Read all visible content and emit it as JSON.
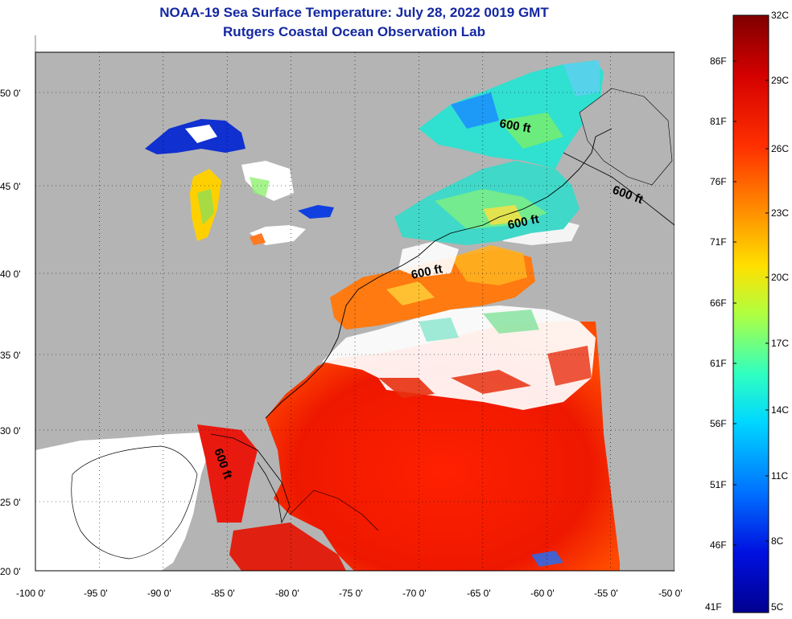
{
  "header": {
    "title": "NOAA-19 Sea Surface Temperature:  July 28, 2022 0019 GMT",
    "subtitle": "Rutgers Coastal Ocean Observation Lab"
  },
  "map": {
    "lon_ticks": [
      "-100 0'",
      "-95 0'",
      "-90 0'",
      "-85 0'",
      "-80 0'",
      "-75 0'",
      "-70 0'",
      "-65 0'",
      "-60 0'",
      "-55 0'",
      "-50 0'"
    ],
    "lat_ticks": [
      "50 0'",
      "45 0'",
      "40 0'",
      "35 0'",
      "30 0'",
      "25 0'",
      "20 0'"
    ],
    "contour_labels": [
      "600 ft",
      "600 ft",
      "600 ft",
      "600 ft",
      "600 ft"
    ],
    "land_color": "#b4b4b4",
    "cloud_color": "#ffffff"
  },
  "colorbar": {
    "celsius": [
      "32C",
      "29C",
      "26C",
      "23C",
      "20C",
      "17C",
      "14C",
      "11C",
      "8C",
      "5C"
    ],
    "fahrenheit": [
      "86F",
      "81F",
      "76F",
      "71F",
      "66F",
      "61F",
      "56F",
      "51F",
      "46F",
      "41F"
    ],
    "gradient": [
      "#7f0000",
      "#ff0000",
      "#ff8000",
      "#ffff00",
      "#80ff80",
      "#00ffff",
      "#0080ff",
      "#0000ff",
      "#00008f"
    ]
  }
}
